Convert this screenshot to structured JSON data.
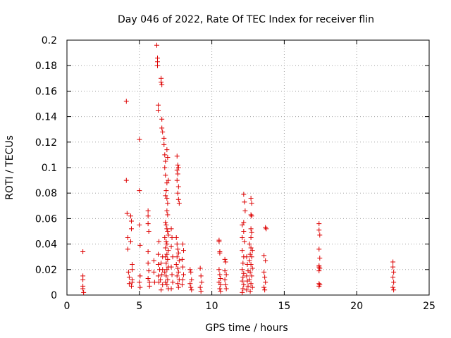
{
  "chart_data": {
    "type": "scatter",
    "title": "Day 046 of 2022, Rate Of TEC Index for receiver flin",
    "xlabel": "GPS time / hours",
    "ylabel": "ROTI / TECUs",
    "xlim": [
      0,
      25
    ],
    "ylim": [
      0,
      0.2
    ],
    "xticks": [
      "0",
      "5",
      "10",
      "15",
      "20",
      "25"
    ],
    "yticks": [
      "0",
      "0.02",
      "0.04",
      "0.06",
      "0.08",
      "0.1",
      "0.12",
      "0.14",
      "0.16",
      "0.18",
      "0.2"
    ],
    "grid": true,
    "marker": "+",
    "color": "#dd0000",
    "series": [
      {
        "points": [
          [
            1.1,
            0.034
          ],
          [
            1.1,
            0.015
          ],
          [
            1.1,
            0.012
          ],
          [
            1.1,
            0.007
          ],
          [
            1.1,
            0.005
          ],
          [
            1.15,
            0.002
          ],
          [
            4.1,
            0.152
          ],
          [
            4.1,
            0.09
          ],
          [
            4.15,
            0.064
          ],
          [
            4.2,
            0.045
          ],
          [
            4.2,
            0.036
          ],
          [
            4.25,
            0.018
          ],
          [
            4.3,
            0.014
          ],
          [
            4.3,
            0.009
          ],
          [
            4.4,
            0.062
          ],
          [
            4.45,
            0.058
          ],
          [
            4.45,
            0.052
          ],
          [
            4.4,
            0.042
          ],
          [
            4.5,
            0.024
          ],
          [
            4.5,
            0.02
          ],
          [
            4.5,
            0.012
          ],
          [
            4.5,
            0.01
          ],
          [
            4.45,
            0.007
          ],
          [
            5.0,
            0.122
          ],
          [
            5.0,
            0.082
          ],
          [
            5.0,
            0.055
          ],
          [
            5.05,
            0.039
          ],
          [
            5.05,
            0.015
          ],
          [
            5.0,
            0.01
          ],
          [
            5.05,
            0.006
          ],
          [
            5.6,
            0.066
          ],
          [
            5.6,
            0.062
          ],
          [
            5.6,
            0.056
          ],
          [
            5.65,
            0.05
          ],
          [
            5.6,
            0.034
          ],
          [
            5.6,
            0.025
          ],
          [
            5.65,
            0.019
          ],
          [
            5.6,
            0.013
          ],
          [
            5.7,
            0.01
          ],
          [
            5.7,
            0.007
          ],
          [
            6.0,
            0.027
          ],
          [
            6.0,
            0.018
          ],
          [
            6.05,
            0.01
          ],
          [
            6.2,
            0.196
          ],
          [
            6.25,
            0.186
          ],
          [
            6.25,
            0.183
          ],
          [
            6.25,
            0.18
          ],
          [
            6.3,
            0.149
          ],
          [
            6.3,
            0.145
          ],
          [
            6.35,
            0.042
          ],
          [
            6.3,
            0.032
          ],
          [
            6.3,
            0.024
          ],
          [
            6.4,
            0.02
          ],
          [
            6.3,
            0.015
          ],
          [
            6.35,
            0.01
          ],
          [
            6.5,
            0.17
          ],
          [
            6.5,
            0.167
          ],
          [
            6.55,
            0.165
          ],
          [
            6.55,
            0.138
          ],
          [
            6.55,
            0.131
          ],
          [
            6.6,
            0.128
          ],
          [
            6.7,
            0.123
          ],
          [
            6.7,
            0.118
          ],
          [
            6.75,
            0.11
          ],
          [
            6.8,
            0.105
          ],
          [
            6.75,
            0.1
          ],
          [
            6.8,
            0.094
          ],
          [
            6.9,
            0.114
          ],
          [
            6.95,
            0.108
          ],
          [
            7.0,
            0.09
          ],
          [
            6.9,
            0.088
          ],
          [
            6.85,
            0.082
          ],
          [
            6.8,
            0.078
          ],
          [
            6.9,
            0.076
          ],
          [
            6.95,
            0.072
          ],
          [
            6.9,
            0.066
          ],
          [
            6.95,
            0.063
          ],
          [
            6.8,
            0.057
          ],
          [
            6.85,
            0.055
          ],
          [
            6.9,
            0.052
          ],
          [
            6.95,
            0.05
          ],
          [
            7.0,
            0.047
          ],
          [
            6.75,
            0.045
          ],
          [
            6.85,
            0.042
          ],
          [
            6.9,
            0.04
          ],
          [
            6.8,
            0.037
          ],
          [
            7.0,
            0.035
          ],
          [
            6.9,
            0.032
          ],
          [
            6.8,
            0.03
          ],
          [
            6.95,
            0.028
          ],
          [
            6.85,
            0.025
          ],
          [
            7.0,
            0.022
          ],
          [
            6.9,
            0.02
          ],
          [
            6.75,
            0.018
          ],
          [
            6.85,
            0.015
          ],
          [
            6.95,
            0.012
          ],
          [
            6.8,
            0.01
          ],
          [
            6.9,
            0.008
          ],
          [
            7.0,
            0.005
          ],
          [
            6.6,
            0.03
          ],
          [
            6.5,
            0.025
          ],
          [
            6.6,
            0.02
          ],
          [
            6.55,
            0.016
          ],
          [
            6.45,
            0.012
          ],
          [
            6.6,
            0.008
          ],
          [
            6.5,
            0.004
          ],
          [
            7.2,
            0.052
          ],
          [
            7.25,
            0.045
          ],
          [
            7.2,
            0.038
          ],
          [
            7.3,
            0.03
          ],
          [
            7.2,
            0.022
          ],
          [
            7.25,
            0.016
          ],
          [
            7.3,
            0.01
          ],
          [
            7.2,
            0.005
          ],
          [
            7.6,
            0.109
          ],
          [
            7.65,
            0.102
          ],
          [
            7.6,
            0.098
          ],
          [
            7.7,
            0.1
          ],
          [
            7.65,
            0.095
          ],
          [
            7.6,
            0.09
          ],
          [
            7.7,
            0.085
          ],
          [
            7.65,
            0.08
          ],
          [
            7.7,
            0.075
          ],
          [
            7.75,
            0.072
          ],
          [
            7.55,
            0.045
          ],
          [
            7.6,
            0.04
          ],
          [
            7.65,
            0.036
          ],
          [
            7.7,
            0.033
          ],
          [
            7.6,
            0.03
          ],
          [
            7.75,
            0.027
          ],
          [
            7.55,
            0.024
          ],
          [
            7.65,
            0.021
          ],
          [
            7.7,
            0.018
          ],
          [
            7.6,
            0.015
          ],
          [
            7.75,
            0.012
          ],
          [
            7.65,
            0.009
          ],
          [
            7.7,
            0.006
          ],
          [
            8.0,
            0.04
          ],
          [
            8.05,
            0.035
          ],
          [
            7.95,
            0.028
          ],
          [
            8.0,
            0.022
          ],
          [
            8.05,
            0.016
          ],
          [
            8.0,
            0.012
          ],
          [
            7.95,
            0.008
          ],
          [
            8.5,
            0.02
          ],
          [
            8.55,
            0.018
          ],
          [
            8.6,
            0.012
          ],
          [
            8.5,
            0.009
          ],
          [
            8.55,
            0.006
          ],
          [
            8.6,
            0.004
          ],
          [
            9.2,
            0.021
          ],
          [
            9.25,
            0.015
          ],
          [
            9.3,
            0.01
          ],
          [
            9.2,
            0.006
          ],
          [
            9.25,
            0.003
          ],
          [
            10.5,
            0.043
          ],
          [
            10.5,
            0.042
          ],
          [
            10.55,
            0.034
          ],
          [
            10.55,
            0.033
          ],
          [
            10.5,
            0.02
          ],
          [
            10.55,
            0.016
          ],
          [
            10.6,
            0.013
          ],
          [
            10.5,
            0.01
          ],
          [
            10.6,
            0.008
          ],
          [
            10.55,
            0.005
          ],
          [
            10.6,
            0.003
          ],
          [
            10.9,
            0.028
          ],
          [
            10.95,
            0.026
          ],
          [
            10.9,
            0.019
          ],
          [
            11.0,
            0.016
          ],
          [
            10.9,
            0.012
          ],
          [
            10.95,
            0.008
          ],
          [
            11.0,
            0.005
          ],
          [
            12.1,
            0.055
          ],
          [
            12.2,
            0.05
          ],
          [
            12.1,
            0.045
          ],
          [
            12.25,
            0.042
          ],
          [
            12.1,
            0.035
          ],
          [
            12.2,
            0.03
          ],
          [
            12.15,
            0.025
          ],
          [
            12.1,
            0.02
          ],
          [
            12.2,
            0.017
          ],
          [
            12.15,
            0.014
          ],
          [
            12.1,
            0.011
          ],
          [
            12.2,
            0.008
          ],
          [
            12.15,
            0.005
          ],
          [
            12.1,
            0.002
          ],
          [
            12.2,
            0.079
          ],
          [
            12.25,
            0.073
          ],
          [
            12.3,
            0.066
          ],
          [
            12.2,
            0.057
          ],
          [
            12.4,
            0.03
          ],
          [
            12.45,
            0.024
          ],
          [
            12.5,
            0.019
          ],
          [
            12.4,
            0.015
          ],
          [
            12.45,
            0.011
          ],
          [
            12.5,
            0.007
          ],
          [
            12.4,
            0.004
          ],
          [
            12.7,
            0.076
          ],
          [
            12.75,
            0.072
          ],
          [
            12.7,
            0.063
          ],
          [
            12.75,
            0.062
          ],
          [
            12.7,
            0.052
          ],
          [
            12.75,
            0.049
          ],
          [
            12.7,
            0.045
          ],
          [
            12.6,
            0.04
          ],
          [
            12.7,
            0.037
          ],
          [
            12.8,
            0.035
          ],
          [
            12.65,
            0.032
          ],
          [
            12.75,
            0.03
          ],
          [
            12.6,
            0.027
          ],
          [
            12.7,
            0.024
          ],
          [
            12.8,
            0.021
          ],
          [
            12.65,
            0.018
          ],
          [
            12.75,
            0.015
          ],
          [
            12.6,
            0.012
          ],
          [
            12.7,
            0.009
          ],
          [
            12.8,
            0.006
          ],
          [
            12.65,
            0.003
          ],
          [
            13.7,
            0.053
          ],
          [
            13.75,
            0.052
          ],
          [
            13.6,
            0.031
          ],
          [
            13.7,
            0.027
          ],
          [
            13.6,
            0.018
          ],
          [
            13.65,
            0.014
          ],
          [
            13.7,
            0.01
          ],
          [
            13.6,
            0.006
          ],
          [
            13.65,
            0.004
          ],
          [
            17.4,
            0.056
          ],
          [
            17.4,
            0.051
          ],
          [
            17.45,
            0.047
          ],
          [
            17.4,
            0.036
          ],
          [
            17.45,
            0.029
          ],
          [
            17.4,
            0.023
          ],
          [
            17.4,
            0.022
          ],
          [
            17.45,
            0.021
          ],
          [
            17.4,
            0.019
          ],
          [
            17.4,
            0.009
          ],
          [
            17.45,
            0.008
          ],
          [
            17.4,
            0.007
          ],
          [
            22.5,
            0.026
          ],
          [
            22.5,
            0.022
          ],
          [
            22.55,
            0.018
          ],
          [
            22.5,
            0.014
          ],
          [
            22.55,
            0.01
          ],
          [
            22.5,
            0.006
          ],
          [
            22.55,
            0.004
          ]
        ]
      }
    ]
  }
}
